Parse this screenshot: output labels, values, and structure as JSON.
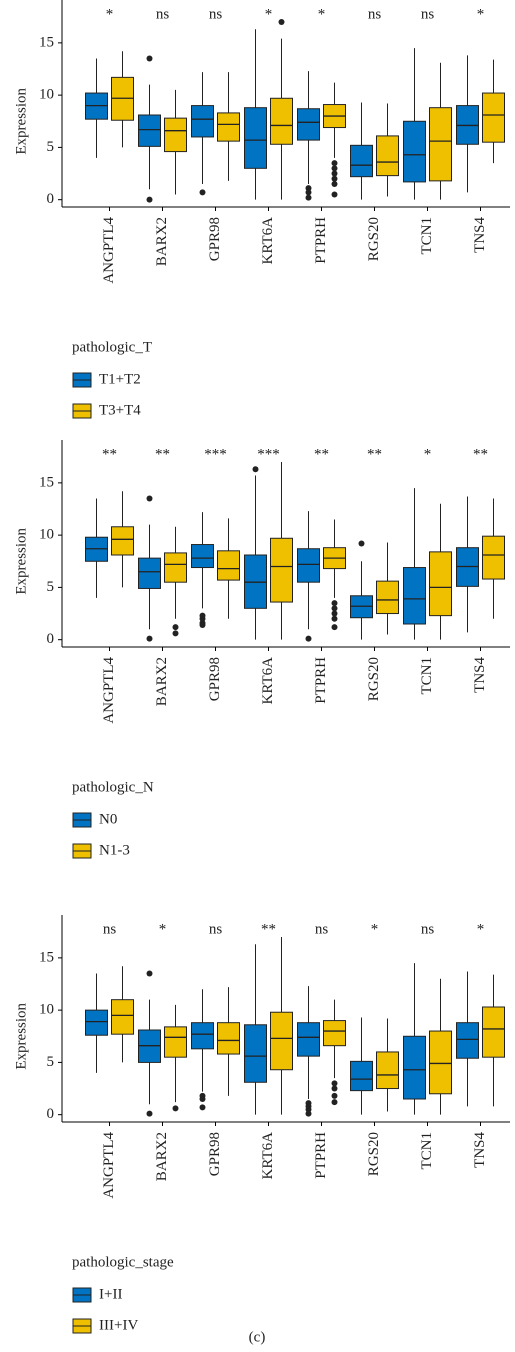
{
  "chart_data": [
    {
      "type": "box",
      "ylabel": "Expression",
      "legend_title": "pathologic_T",
      "categories": [
        "ANGPTL4",
        "BARX2",
        "GPR98",
        "KRT6A",
        "PTPRH",
        "RGS20",
        "TCN1",
        "TNS4"
      ],
      "significance": [
        "*",
        "ns",
        "ns",
        "*",
        "*",
        "ns",
        "ns",
        "*"
      ],
      "ylim": [
        -0.7,
        19.1
      ],
      "yticks": [
        0,
        5,
        10,
        15
      ],
      "series": [
        {
          "name": "T1+T2",
          "color": "#0073c2",
          "min": [
            4,
            1,
            1.5,
            0,
            1.5,
            0,
            0,
            0.7
          ],
          "q1": [
            7.7,
            5.1,
            6,
            3,
            5.7,
            2.2,
            1.7,
            5.3
          ],
          "median": [
            9,
            6.7,
            7.7,
            5.7,
            7.4,
            3.3,
            4.3,
            7.1
          ],
          "q3": [
            10.2,
            8.1,
            9,
            8.8,
            8.7,
            5.2,
            7.5,
            9
          ],
          "max": [
            13.5,
            11,
            12.2,
            16.3,
            12.3,
            9.3,
            14.5,
            13.8
          ],
          "outliers": [
            [],
            [
              13.5,
              0
            ],
            [
              0.7
            ],
            [],
            [
              1.1,
              0.7,
              0.2
            ],
            [],
            [],
            []
          ]
        },
        {
          "name": "T3+T4",
          "color": "#efc000",
          "min": [
            5,
            0.5,
            1.8,
            0,
            4,
            0.3,
            0,
            3.5
          ],
          "q1": [
            7.6,
            4.6,
            5.6,
            5.3,
            6.9,
            2.3,
            1.8,
            5.5
          ],
          "median": [
            9.7,
            6.6,
            7.2,
            7.1,
            8,
            3.6,
            5.6,
            8.1
          ],
          "q3": [
            11.7,
            7.8,
            8.3,
            9.7,
            9.1,
            6.1,
            8.8,
            10.2
          ],
          "max": [
            14.2,
            10.5,
            12.2,
            15.4,
            11.2,
            9.2,
            13.1,
            13.4
          ],
          "outliers": [
            [],
            [],
            [],
            [
              17
            ],
            [
              3.5,
              3,
              2.5,
              2,
              1.5,
              0.5
            ],
            [],
            [],
            []
          ]
        }
      ]
    },
    {
      "type": "box",
      "ylabel": "Expression",
      "legend_title": "pathologic_N",
      "categories": [
        "ANGPTL4",
        "BARX2",
        "GPR98",
        "KRT6A",
        "PTPRH",
        "RGS20",
        "TCN1",
        "TNS4"
      ],
      "significance": [
        "**",
        "**",
        "***",
        "***",
        "**",
        "**",
        "*",
        "**"
      ],
      "ylim": [
        -0.7,
        19.1
      ],
      "yticks": [
        0,
        5,
        10,
        15
      ],
      "series": [
        {
          "name": "N0",
          "color": "#0073c2",
          "min": [
            4,
            1,
            3,
            0,
            1,
            0,
            0,
            0.7
          ],
          "q1": [
            7.5,
            4.9,
            6.9,
            3,
            5.5,
            2.1,
            1.5,
            5.1
          ],
          "median": [
            8.7,
            6.5,
            7.8,
            5.5,
            7.2,
            3.2,
            3.9,
            7
          ],
          "q3": [
            9.8,
            7.8,
            9.1,
            8.1,
            8.7,
            4.2,
            6.9,
            8.8
          ],
          "max": [
            13.5,
            11,
            12.2,
            15.7,
            12.3,
            7.5,
            14.5,
            13.7
          ],
          "outliers": [
            [],
            [
              13.5,
              0.1
            ],
            [
              2.3,
              2,
              1.6,
              1.4
            ],
            [
              16.3
            ],
            [
              0.1
            ],
            [
              9.2
            ],
            [],
            []
          ]
        },
        {
          "name": "N1-3",
          "color": "#efc000",
          "min": [
            5,
            2,
            2,
            0,
            4,
            0.5,
            0,
            2
          ],
          "q1": [
            8.1,
            5.5,
            5.7,
            3.6,
            6.8,
            2.5,
            2.3,
            5.8
          ],
          "median": [
            9.6,
            7.2,
            6.8,
            7,
            7.8,
            3.8,
            5,
            8.1
          ],
          "q3": [
            10.8,
            8.3,
            8.5,
            9.7,
            8.8,
            5.6,
            8.4,
            9.9
          ],
          "max": [
            14.2,
            10.8,
            11.6,
            17,
            11.5,
            9.3,
            13,
            13.5
          ],
          "outliers": [
            [],
            [
              1.2,
              0.6
            ],
            [],
            [],
            [
              3.5,
              3,
              2.5,
              2,
              1.2
            ],
            [],
            [],
            []
          ]
        }
      ]
    },
    {
      "type": "box",
      "ylabel": "Expression",
      "legend_title": "pathologic_stage",
      "categories": [
        "ANGPTL4",
        "BARX2",
        "GPR98",
        "KRT6A",
        "PTPRH",
        "RGS20",
        "TCN1",
        "TNS4"
      ],
      "significance": [
        "ns",
        "*",
        "ns",
        "**",
        "ns",
        "*",
        "ns",
        "*"
      ],
      "ylim": [
        -0.7,
        19.1
      ],
      "yticks": [
        0,
        5,
        10,
        15
      ],
      "series": [
        {
          "name": "I+II",
          "color": "#0073c2",
          "min": [
            4,
            1,
            2.2,
            0,
            1.5,
            0,
            0,
            0.8
          ],
          "q1": [
            7.6,
            5,
            6.3,
            3.1,
            5.6,
            2.3,
            1.5,
            5.4
          ],
          "median": [
            8.9,
            6.6,
            7.7,
            5.6,
            7.4,
            3.4,
            4.3,
            7.2
          ],
          "q3": [
            10,
            8.1,
            8.8,
            8.6,
            8.8,
            5.1,
            7.5,
            8.8
          ],
          "max": [
            13.5,
            11,
            12,
            16.3,
            12.3,
            9.3,
            14.5,
            13.7
          ],
          "outliers": [
            [],
            [
              13.5,
              0.1
            ],
            [
              1.8,
              1.5,
              0.7
            ],
            [],
            [
              1.1,
              0.8,
              0.5,
              0.1
            ],
            [],
            [],
            []
          ]
        },
        {
          "name": "III+IV",
          "color": "#efc000",
          "min": [
            5,
            1.2,
            1.8,
            0,
            3.5,
            0.3,
            0,
            0.8
          ],
          "q1": [
            7.7,
            5.5,
            5.8,
            4.3,
            6.6,
            2.5,
            2,
            5.5
          ],
          "median": [
            9.5,
            7.4,
            7.1,
            7.3,
            8,
            3.8,
            4.9,
            8.2
          ],
          "q3": [
            11,
            8.4,
            8.8,
            9.8,
            9,
            6,
            8,
            10.3
          ],
          "max": [
            14.2,
            10.5,
            12.2,
            17,
            11,
            9.2,
            13,
            13.4
          ],
          "outliers": [
            [],
            [
              0.6
            ],
            [],
            [],
            [
              3,
              2.5,
              1.8,
              1.2
            ],
            [],
            [],
            []
          ]
        }
      ]
    }
  ],
  "caption": "(c)"
}
